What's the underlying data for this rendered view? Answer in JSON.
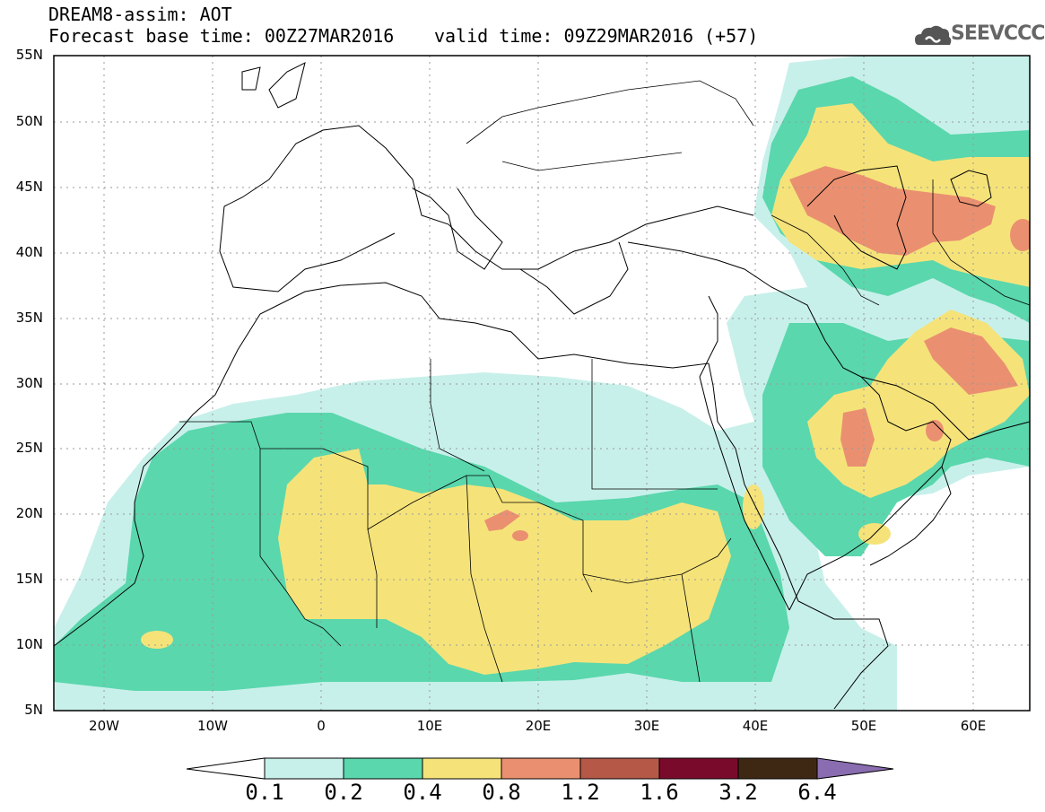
{
  "header": {
    "title_line1": "DREAM8-assim: AOT",
    "title_line2": "Forecast base time: 00Z27MAR2016",
    "valid_time": "valid time: 09Z29MAR2016 (+57)",
    "logo_text": "SEEVCCC",
    "logo_icon": "cloud-logo-icon"
  },
  "map": {
    "lon_range": [
      -25,
      65
    ],
    "lat_range": [
      5,
      55
    ],
    "lat_labels": [
      "55N",
      "50N",
      "45N",
      "40N",
      "35N",
      "30N",
      "25N",
      "20N",
      "15N",
      "10N",
      "5N"
    ],
    "lon_labels": [
      "20W",
      "10W",
      "0",
      "10E",
      "20E",
      "30E",
      "40E",
      "50E",
      "60E"
    ],
    "grid": "dotted"
  },
  "colorbar": {
    "labels": [
      "0.1",
      "0.2",
      "0.4",
      "0.8",
      "1.2",
      "1.6",
      "3.2",
      "6.4"
    ],
    "colors": [
      "#ffffff",
      "#c8f0ea",
      "#5ad7ad",
      "#f5e37a",
      "#ea9070",
      "#b55848",
      "#7a0a2c",
      "#3e2814",
      "#8a6cb0"
    ]
  }
}
